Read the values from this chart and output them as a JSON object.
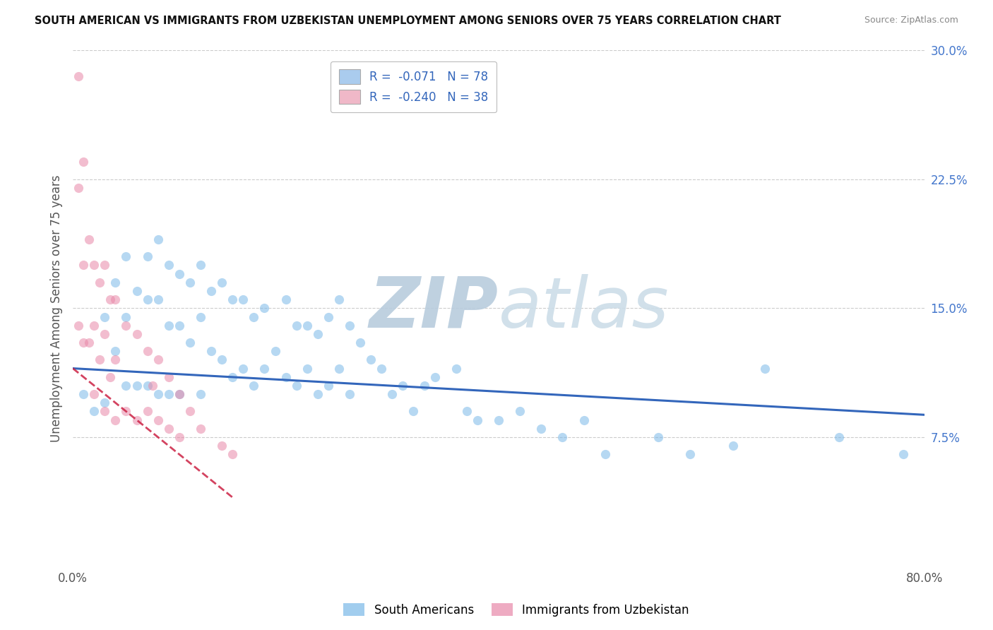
{
  "title": "SOUTH AMERICAN VS IMMIGRANTS FROM UZBEKISTAN UNEMPLOYMENT AMONG SENIORS OVER 75 YEARS CORRELATION CHART",
  "source": "Source: ZipAtlas.com",
  "ylabel": "Unemployment Among Seniors over 75 years",
  "xlim": [
    0.0,
    0.8
  ],
  "ylim": [
    0.0,
    0.3
  ],
  "yticks_right": [
    0.075,
    0.15,
    0.225,
    0.3
  ],
  "yticklabels_right": [
    "7.5%",
    "15.0%",
    "22.5%",
    "30.0%"
  ],
  "legend1_label": "R =  -0.071   N = 78",
  "legend2_label": "R =  -0.240   N = 38",
  "legend1_color": "#aaccee",
  "legend2_color": "#f0b8c8",
  "scatter1_color": "#7ab8e8",
  "scatter2_color": "#e888a8",
  "trendline1_color": "#3366bb",
  "trendline2_color": "#cc2244",
  "trendline2_dash": "dashed",
  "watermark_zip": "ZIP",
  "watermark_atlas": "atlas",
  "watermark_color": "#ccdde8",
  "background_color": "#ffffff",
  "legend_text_color": "#3366bb",
  "scatter1_x": [
    0.01,
    0.02,
    0.03,
    0.03,
    0.04,
    0.04,
    0.05,
    0.05,
    0.05,
    0.06,
    0.06,
    0.07,
    0.07,
    0.07,
    0.08,
    0.08,
    0.08,
    0.09,
    0.09,
    0.09,
    0.1,
    0.1,
    0.1,
    0.11,
    0.11,
    0.12,
    0.12,
    0.12,
    0.13,
    0.13,
    0.14,
    0.14,
    0.15,
    0.15,
    0.16,
    0.16,
    0.17,
    0.17,
    0.18,
    0.18,
    0.19,
    0.2,
    0.2,
    0.21,
    0.21,
    0.22,
    0.22,
    0.23,
    0.23,
    0.24,
    0.24,
    0.25,
    0.25,
    0.26,
    0.26,
    0.27,
    0.28,
    0.29,
    0.3,
    0.31,
    0.32,
    0.33,
    0.34,
    0.36,
    0.37,
    0.38,
    0.4,
    0.42,
    0.44,
    0.46,
    0.48,
    0.5,
    0.55,
    0.58,
    0.62,
    0.65,
    0.72,
    0.78
  ],
  "scatter1_y": [
    0.1,
    0.09,
    0.145,
    0.095,
    0.165,
    0.125,
    0.18,
    0.145,
    0.105,
    0.16,
    0.105,
    0.18,
    0.155,
    0.105,
    0.19,
    0.155,
    0.1,
    0.175,
    0.14,
    0.1,
    0.17,
    0.14,
    0.1,
    0.165,
    0.13,
    0.175,
    0.145,
    0.1,
    0.16,
    0.125,
    0.165,
    0.12,
    0.155,
    0.11,
    0.155,
    0.115,
    0.145,
    0.105,
    0.15,
    0.115,
    0.125,
    0.155,
    0.11,
    0.14,
    0.105,
    0.14,
    0.115,
    0.135,
    0.1,
    0.145,
    0.105,
    0.155,
    0.115,
    0.14,
    0.1,
    0.13,
    0.12,
    0.115,
    0.1,
    0.105,
    0.09,
    0.105,
    0.11,
    0.115,
    0.09,
    0.085,
    0.085,
    0.09,
    0.08,
    0.075,
    0.085,
    0.065,
    0.075,
    0.065,
    0.07,
    0.115,
    0.075,
    0.065
  ],
  "scatter2_x": [
    0.005,
    0.005,
    0.005,
    0.01,
    0.01,
    0.01,
    0.015,
    0.015,
    0.02,
    0.02,
    0.02,
    0.025,
    0.025,
    0.03,
    0.03,
    0.03,
    0.035,
    0.035,
    0.04,
    0.04,
    0.04,
    0.05,
    0.05,
    0.06,
    0.06,
    0.07,
    0.07,
    0.075,
    0.08,
    0.08,
    0.09,
    0.09,
    0.1,
    0.1,
    0.11,
    0.12,
    0.14,
    0.15
  ],
  "scatter2_y": [
    0.285,
    0.22,
    0.14,
    0.235,
    0.175,
    0.13,
    0.19,
    0.13,
    0.175,
    0.14,
    0.1,
    0.165,
    0.12,
    0.175,
    0.135,
    0.09,
    0.155,
    0.11,
    0.155,
    0.12,
    0.085,
    0.14,
    0.09,
    0.135,
    0.085,
    0.125,
    0.09,
    0.105,
    0.12,
    0.085,
    0.11,
    0.08,
    0.1,
    0.075,
    0.09,
    0.08,
    0.07,
    0.065
  ],
  "trendline1_x": [
    0.0,
    0.8
  ],
  "trendline1_y": [
    0.115,
    0.088
  ],
  "trendline2_x": [
    0.0,
    0.15
  ],
  "trendline2_y": [
    0.115,
    0.04
  ],
  "bottom_legend": [
    "South Americans",
    "Immigrants from Uzbekistan"
  ],
  "figsize": [
    14.06,
    8.92
  ],
  "dpi": 100
}
